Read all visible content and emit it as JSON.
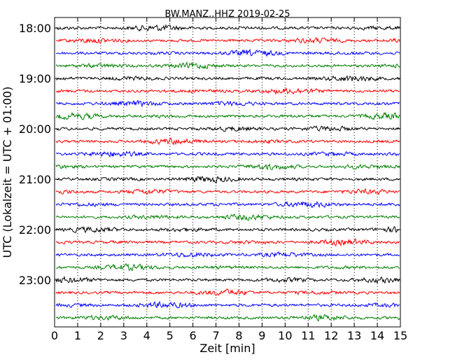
{
  "chart_data": {
    "type": "line",
    "title": "BW.MANZ..HHZ 2019-02-25",
    "xlabel": "Zeit  [min]",
    "ylabel": "UTC (Lokalzeit = UTC + 01:00)",
    "xlim": [
      0,
      15
    ],
    "x_ticks": [
      0,
      1,
      2,
      3,
      4,
      5,
      6,
      7,
      8,
      9,
      10,
      11,
      12,
      13,
      14,
      15
    ],
    "y_tick_labels": [
      "18:00",
      "19:00",
      "20:00",
      "21:00",
      "22:00",
      "23:00"
    ],
    "trace_start_times": [
      "18:00",
      "18:15",
      "18:30",
      "18:45",
      "19:00",
      "19:15",
      "19:30",
      "19:45",
      "20:00",
      "20:15",
      "20:30",
      "20:45",
      "21:00",
      "21:15",
      "21:30",
      "21:45",
      "22:00",
      "22:15",
      "22:30",
      "22:45",
      "23:00",
      "23:15",
      "23:30",
      "23:45"
    ],
    "trace_color_cycle": [
      "#000000",
      "#ff0000",
      "#0000ff",
      "#008000"
    ],
    "vertical_grid": true,
    "grid_style": "dotted"
  }
}
